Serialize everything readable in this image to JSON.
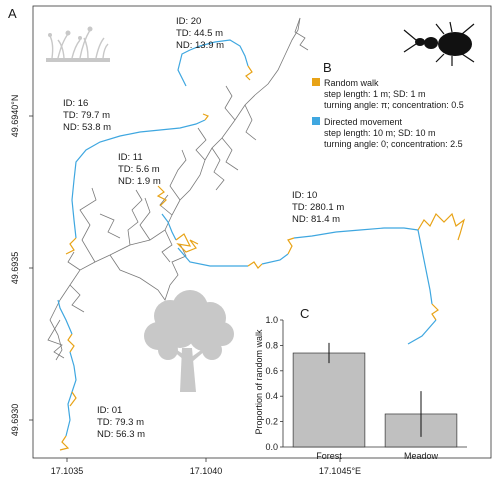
{
  "panels": {
    "A": "A",
    "B": "B",
    "C": "C"
  },
  "colors": {
    "random_walk": "#E8A317",
    "directed": "#3FA7E0",
    "track_gray": "#7a7a7a",
    "bar": "#c0c0c0"
  },
  "icons": [
    "grass-silhouette-icon",
    "tree-silhouette-icon",
    "beetle-silhouette-icon"
  ],
  "map": {
    "x_ticks": [
      "17.1035",
      "17.1040",
      "17.1045°E"
    ],
    "y_ticks": [
      "49.6930",
      "49.6935",
      "49.6940°N"
    ],
    "individuals": [
      {
        "id": "ID: 20",
        "td": "TD: 44.5 m",
        "nd": "ND: 13.9 m"
      },
      {
        "id": "ID: 16",
        "td": "TD: 79.7 m",
        "nd": "ND: 53.8 m"
      },
      {
        "id": "ID: 11",
        "td": "TD: 5.6 m",
        "nd": "ND: 1.9 m"
      },
      {
        "id": "ID: 10",
        "td": "TD: 280.1 m",
        "nd": "ND: 81.4 m"
      },
      {
        "id": "ID: 01",
        "td": "TD: 79.3 m",
        "nd": "ND: 56.3 m"
      }
    ]
  },
  "legend": {
    "random_walk": {
      "title": "Random walk",
      "line1": "step length: 1 m; SD: 1 m",
      "line2": "turning angle: π; concentration: 0.5"
    },
    "directed": {
      "title": "Directed movement",
      "line1": "step length: 10 m; SD: 10 m",
      "line2": "turning angle: 0; concentration: 2.5"
    }
  },
  "chart_data": {
    "type": "bar",
    "categories": [
      "Forest",
      "Meadow"
    ],
    "values": [
      0.74,
      0.26
    ],
    "error_low": [
      0.66,
      0.08
    ],
    "error_high": [
      0.82,
      0.44
    ],
    "ylabel": "Proportion of random walk",
    "ylim": [
      0,
      1.0
    ],
    "yticks": [
      "0.0",
      "0.2",
      "0.4",
      "0.6",
      "0.8",
      "1.0"
    ]
  }
}
